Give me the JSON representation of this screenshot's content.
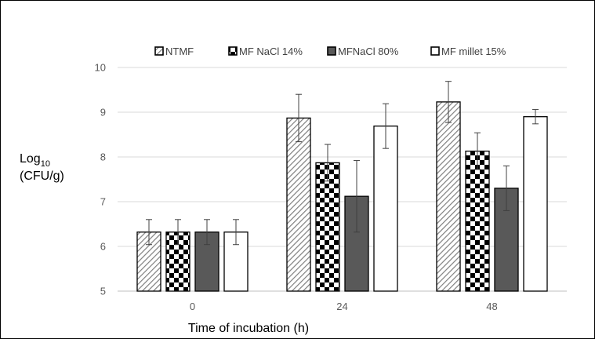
{
  "chart_data": {
    "type": "bar",
    "categories": [
      "0",
      "24",
      "48"
    ],
    "series": [
      {
        "name": "NTMF",
        "values": [
          6.32,
          8.87,
          9.23
        ],
        "errors": [
          0.28,
          0.53,
          0.46
        ],
        "fill": "diagonal-hatch"
      },
      {
        "name": "MF NaCl 14%",
        "values": [
          6.32,
          7.87,
          8.13
        ],
        "errors": [
          0.28,
          0.41,
          0.41
        ],
        "fill": "checkerboard"
      },
      {
        "name": "MFNaCl 80%",
        "values": [
          6.32,
          7.12,
          7.3
        ],
        "errors": [
          0.28,
          0.8,
          0.5
        ],
        "fill": "solid-dark-gray"
      },
      {
        "name": "MF millet 15%",
        "values": [
          6.32,
          8.69,
          8.9
        ],
        "errors": [
          0.28,
          0.5,
          0.16
        ],
        "fill": "white"
      }
    ],
    "xlabel": "Time of incubation (h)",
    "ylabel_main": "Log",
    "ylabel_sub": "10",
    "ylabel_unit": "(CFU/g)",
    "ylim": [
      5,
      10
    ],
    "yticks": [
      "5",
      "6",
      "7",
      "8",
      "9",
      "10"
    ],
    "legend_position": "top",
    "grid": "horizontal",
    "colors": {
      "dark_bar": "#595959",
      "grid": "#d9d9d9",
      "axis": "#bfbfbf",
      "tick_text": "#595959"
    }
  }
}
